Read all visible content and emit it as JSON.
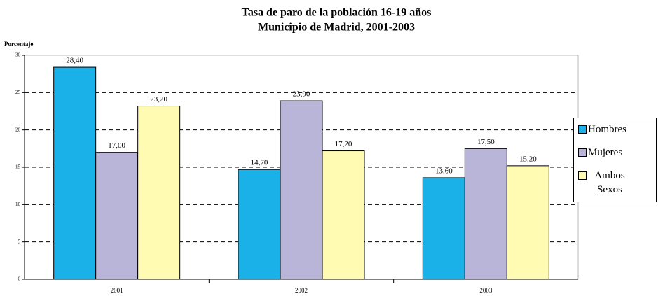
{
  "chart_data": {
    "type": "bar",
    "title": "Tasa de paro de la población 16-19 años",
    "subtitle": "Municipio de Madrid, 2001-2003",
    "y_label": "Porcentaje",
    "categories": [
      "2001",
      "2002",
      "2003"
    ],
    "series": [
      {
        "name": "Hombres",
        "color": "#1ab0e8",
        "values": [
          28.4,
          14.7,
          13.6
        ],
        "value_labels": [
          "28,40",
          "14,70",
          "13,60"
        ]
      },
      {
        "name": "Mujeres",
        "color": "#b9b5d9",
        "values": [
          17.0,
          23.9,
          17.5
        ],
        "value_labels": [
          "17,00",
          "23,90",
          "17,50"
        ]
      },
      {
        "name": "Ambos Sexos",
        "color": "#fffbb3",
        "values": [
          23.2,
          17.2,
          15.2
        ],
        "value_labels": [
          "23,20",
          "17,20",
          "15,20"
        ]
      }
    ],
    "ylim": [
      0,
      30
    ],
    "yticks": [
      0,
      5,
      10,
      15,
      20,
      25,
      30
    ],
    "grid": true,
    "legend": "right"
  }
}
